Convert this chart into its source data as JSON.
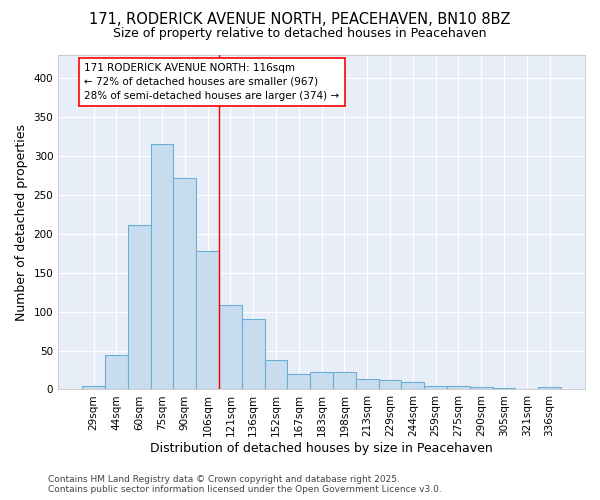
{
  "title": "171, RODERICK AVENUE NORTH, PEACEHAVEN, BN10 8BZ",
  "subtitle": "Size of property relative to detached houses in Peacehaven",
  "xlabel": "Distribution of detached houses by size in Peacehaven",
  "ylabel": "Number of detached properties",
  "categories": [
    "29sqm",
    "44sqm",
    "60sqm",
    "75sqm",
    "90sqm",
    "106sqm",
    "121sqm",
    "136sqm",
    "152sqm",
    "167sqm",
    "183sqm",
    "198sqm",
    "213sqm",
    "229sqm",
    "244sqm",
    "259sqm",
    "275sqm",
    "290sqm",
    "305sqm",
    "321sqm",
    "336sqm"
  ],
  "values": [
    5,
    44,
    211,
    315,
    272,
    178,
    108,
    91,
    38,
    20,
    22,
    22,
    13,
    12,
    10,
    5,
    5,
    3,
    2,
    1,
    3
  ],
  "bar_color": "#c8dcf0",
  "bar_edge_color": "#6aaed6",
  "annotation_text_line1": "171 RODERICK AVENUE NORTH: 116sqm",
  "annotation_text_line2": "← 72% of detached houses are smaller (967)",
  "annotation_text_line3": "28% of semi-detached houses are larger (374) →",
  "annotation_box_color": "white",
  "annotation_box_edge_color": "red",
  "red_line_bin_index": 5,
  "ylim": [
    0,
    430
  ],
  "yticks": [
    0,
    50,
    100,
    150,
    200,
    250,
    300,
    350,
    400
  ],
  "figure_bg": "#ffffff",
  "plot_bg": "#e8eef7",
  "grid_color": "#ffffff",
  "footer_line1": "Contains HM Land Registry data © Crown copyright and database right 2025.",
  "footer_line2": "Contains public sector information licensed under the Open Government Licence v3.0.",
  "title_fontsize": 10.5,
  "subtitle_fontsize": 9,
  "axis_label_fontsize": 9,
  "tick_fontsize": 7.5,
  "annotation_fontsize": 7.5,
  "footer_fontsize": 6.5
}
